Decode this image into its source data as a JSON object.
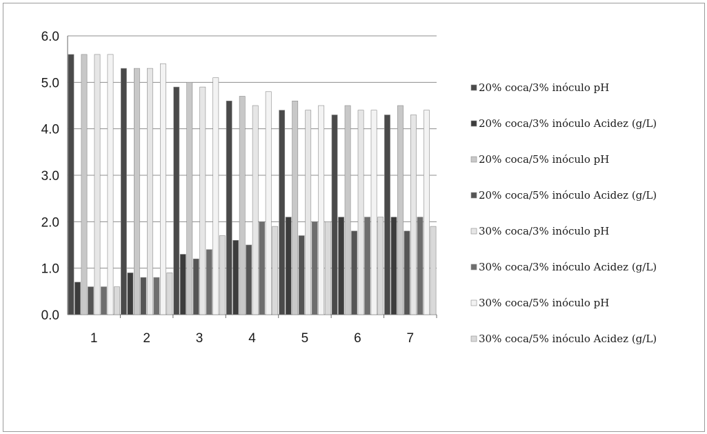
{
  "chart_data": {
    "type": "bar",
    "title": "",
    "xlabel": "",
    "ylabel": "",
    "ylim": [
      0,
      6
    ],
    "y_ticks": [
      "0.0",
      "1.0",
      "2.0",
      "3.0",
      "4.0",
      "5.0",
      "6.0"
    ],
    "categories": [
      "1",
      "2",
      "3",
      "4",
      "5",
      "6",
      "7"
    ],
    "grid": true,
    "legend_position": "right",
    "series": [
      {
        "name": "20% coca/3% inóculo pH",
        "color": "#4a4a4a",
        "values": [
          5.6,
          5.3,
          4.9,
          4.6,
          4.4,
          4.3,
          4.3
        ]
      },
      {
        "name": "20% coca/3% inóculo Acidez (g/L)",
        "color": "#3c3c3c",
        "values": [
          0.7,
          0.9,
          1.3,
          1.6,
          2.1,
          2.1,
          2.1
        ]
      },
      {
        "name": "20% coca/5% inóculo pH",
        "color": "#c8c8c8",
        "values": [
          5.6,
          5.3,
          5.0,
          4.7,
          4.6,
          4.5,
          4.5
        ]
      },
      {
        "name": "20% coca/5% inóculo Acidez (g/L)",
        "color": "#555555",
        "values": [
          0.6,
          0.8,
          1.2,
          1.5,
          1.7,
          1.8,
          1.8
        ]
      },
      {
        "name": "30% coca/3% inóculo pH",
        "color": "#e6e6e6",
        "values": [
          5.6,
          5.3,
          4.9,
          4.5,
          4.4,
          4.4,
          4.3
        ]
      },
      {
        "name": "30% coca/3% inóculo Acidez (g/L)",
        "color": "#6e6e6e",
        "values": [
          0.6,
          0.8,
          1.4,
          2.0,
          2.0,
          2.1,
          2.1
        ]
      },
      {
        "name": "30% coca/5% inóculo pH",
        "color": "#f3f3f3",
        "values": [
          5.6,
          5.4,
          5.1,
          4.8,
          4.5,
          4.4,
          4.4
        ]
      },
      {
        "name": "30% coca/5% inóculo Acidez (g/L)",
        "color": "#d9d9d9",
        "values": [
          0.6,
          0.9,
          1.7,
          1.9,
          2.0,
          2.1,
          1.9
        ]
      }
    ]
  }
}
